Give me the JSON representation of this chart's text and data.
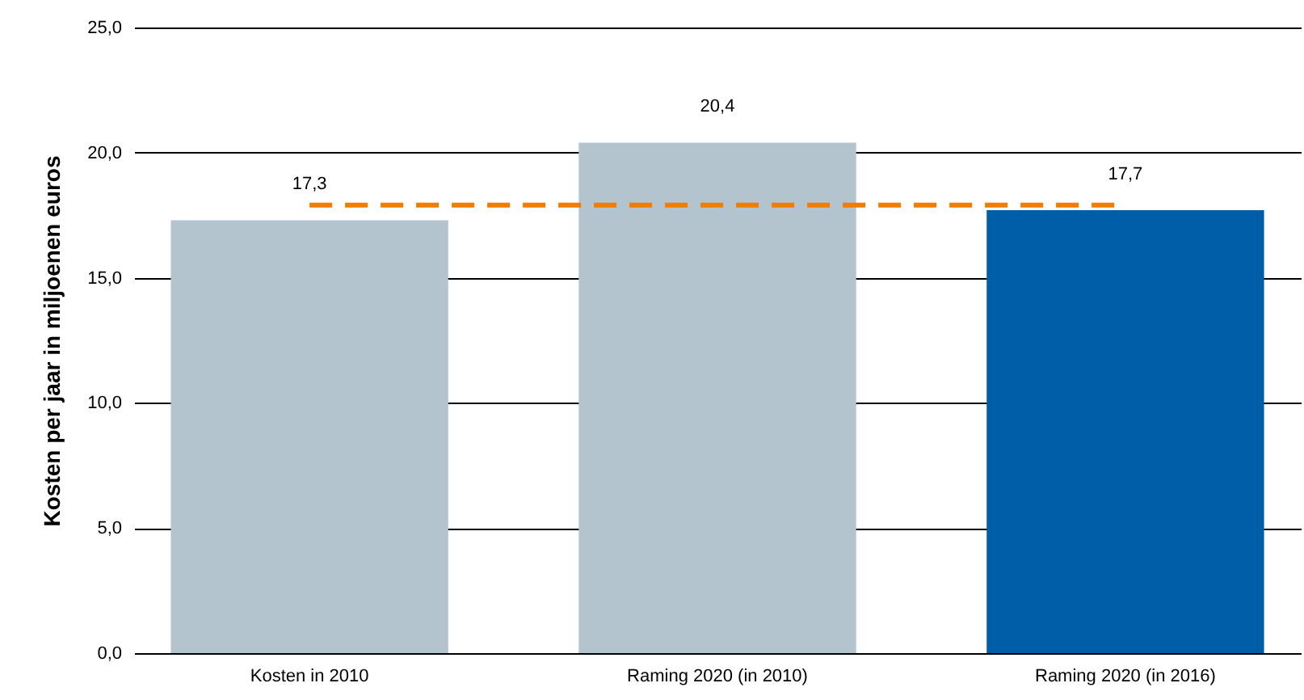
{
  "chart_data": {
    "type": "bar",
    "ylabel": "Kosten per jaar in miljoenen euros",
    "categories": [
      "Kosten in 2010",
      "Raming 2020 (in 2010)",
      "Raming 2020 (in 2016)"
    ],
    "values": [
      17.3,
      20.4,
      17.7
    ],
    "colors": [
      "#b4c4cf",
      "#b4c4cf",
      "#005ea8"
    ],
    "value_labels": [
      "17,3",
      "20,4",
      "17,7"
    ],
    "ylim": [
      0,
      25
    ],
    "yticks": [
      {
        "value": 0,
        "label": "0,0"
      },
      {
        "value": 5,
        "label": "5,0"
      },
      {
        "value": 10,
        "label": "10,0"
      },
      {
        "value": 15,
        "label": "15,0"
      },
      {
        "value": 20,
        "label": "20,0"
      },
      {
        "value": 25,
        "label": "25,0"
      }
    ],
    "ref_lines": [
      {
        "axis": "y",
        "value": 17.9,
        "label": null,
        "color": "#f07d00",
        "line_style": "dashed"
      }
    ],
    "grid": "y"
  }
}
